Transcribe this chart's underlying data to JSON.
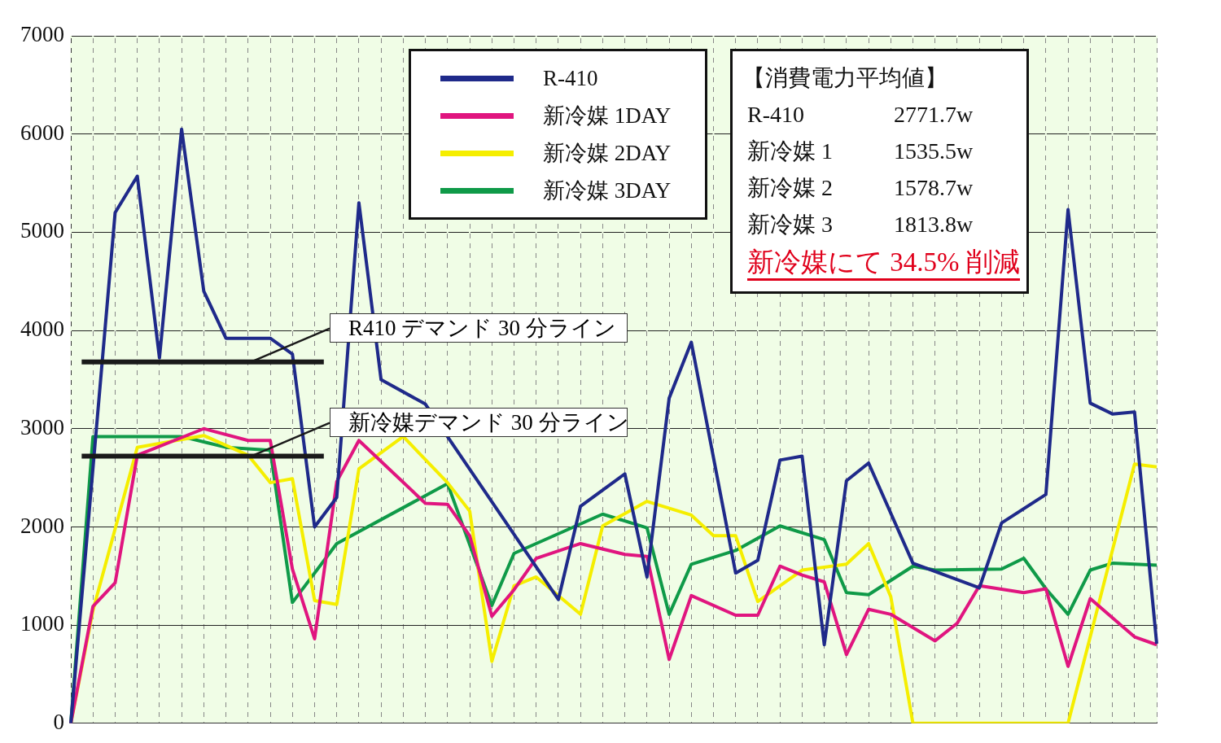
{
  "chart_data": {
    "type": "line",
    "categories": [
      null,
      null,
      null,
      null,
      null,
      null,
      null,
      null,
      null,
      null,
      null,
      null,
      null,
      null,
      null,
      null,
      null,
      null,
      null,
      null,
      null,
      null,
      null,
      null,
      null,
      null,
      null,
      null,
      null,
      null,
      null,
      null,
      null,
      null,
      null,
      null,
      null,
      null,
      null,
      null,
      null,
      null,
      null,
      null,
      null,
      null,
      null,
      null,
      null,
      null
    ],
    "series": [
      {
        "name": "R-410",
        "color": "#1f2a8a",
        "values": [
          0,
          null,
          5200,
          5570,
          3720,
          6050,
          4400,
          3920,
          3920,
          3920,
          3760,
          2000,
          2300,
          5300,
          3500,
          null,
          3250,
          null,
          null,
          null,
          null,
          null,
          1260,
          2210,
          null,
          2540,
          1490,
          3310,
          3880,
          null,
          1530,
          1660,
          2680,
          2720,
          800,
          2470,
          2650,
          null,
          1630,
          null,
          null,
          1380,
          2040,
          null,
          2330,
          5230,
          3260,
          3150,
          3170,
          810
        ]
      },
      {
        "name": "新冷媒 1DAY",
        "color": "#e0157f",
        "values": [
          0,
          1190,
          1430,
          2730,
          null,
          null,
          3000,
          null,
          2880,
          2880,
          1570,
          860,
          2460,
          2880,
          null,
          null,
          2240,
          2230,
          1910,
          1090,
          1360,
          1680,
          null,
          1830,
          null,
          1720,
          1700,
          650,
          1300,
          null,
          1100,
          1100,
          1600,
          1510,
          1440,
          700,
          1160,
          1110,
          null,
          840,
          1020,
          1400,
          null,
          1330,
          1370,
          580,
          1270,
          null,
          880,
          800
        ]
      },
      {
        "name": "新冷媒 2DAY",
        "color": "#f5ee00",
        "values": [
          0,
          1150,
          null,
          2810,
          null,
          null,
          2930,
          null,
          2730,
          2450,
          2490,
          1250,
          1210,
          2590,
          null,
          2920,
          null,
          2450,
          2160,
          630,
          1400,
          1490,
          null,
          1110,
          2010,
          null,
          2260,
          null,
          2120,
          1910,
          1910,
          1240,
          null,
          1560,
          null,
          1620,
          1830,
          1290,
          0,
          0,
          0,
          0,
          0,
          0,
          0,
          0,
          null,
          null,
          2640,
          2610
        ]
      },
      {
        "name": "新冷媒 3DAY",
        "color": "#0f9a48",
        "values": [
          0,
          2920,
          null,
          null,
          null,
          2920,
          null,
          2810,
          null,
          2780,
          1230,
          null,
          1830,
          null,
          null,
          null,
          null,
          2440,
          null,
          1200,
          1730,
          null,
          null,
          null,
          2130,
          null,
          1990,
          1110,
          1620,
          null,
          1760,
          null,
          2010,
          null,
          1870,
          1330,
          1310,
          null,
          1600,
          1560,
          null,
          null,
          1570,
          1680,
          1370,
          1110,
          1560,
          1630,
          null,
          1610
        ]
      }
    ],
    "ylim": [
      0,
      7000
    ],
    "yticks": [
      0,
      1000,
      2000,
      3000,
      4000,
      5000,
      6000,
      7000
    ],
    "grid": true,
    "legend": "top",
    "tick_labels": "y",
    "marker": "none",
    "line_style": "solid",
    "ref_lines": [
      {
        "axis": "y",
        "value": 3680,
        "label": "R410 デマンド 30 分ライン",
        "color": "#1a1a1a"
      },
      {
        "axis": "y",
        "value": 2720,
        "label": "新冷媒デマンド 30 分ライン",
        "color": "#1a1a1a"
      }
    ],
    "annotations": [
      "【消費電力平均値】",
      "R-410",
      "2771.7w",
      "新冷媒 1",
      "1535.5w",
      "新冷媒 2",
      "1578.7w",
      "新冷媒 3",
      "1813.8w",
      "新冷媒にて 34.5% 削減"
    ]
  }
}
